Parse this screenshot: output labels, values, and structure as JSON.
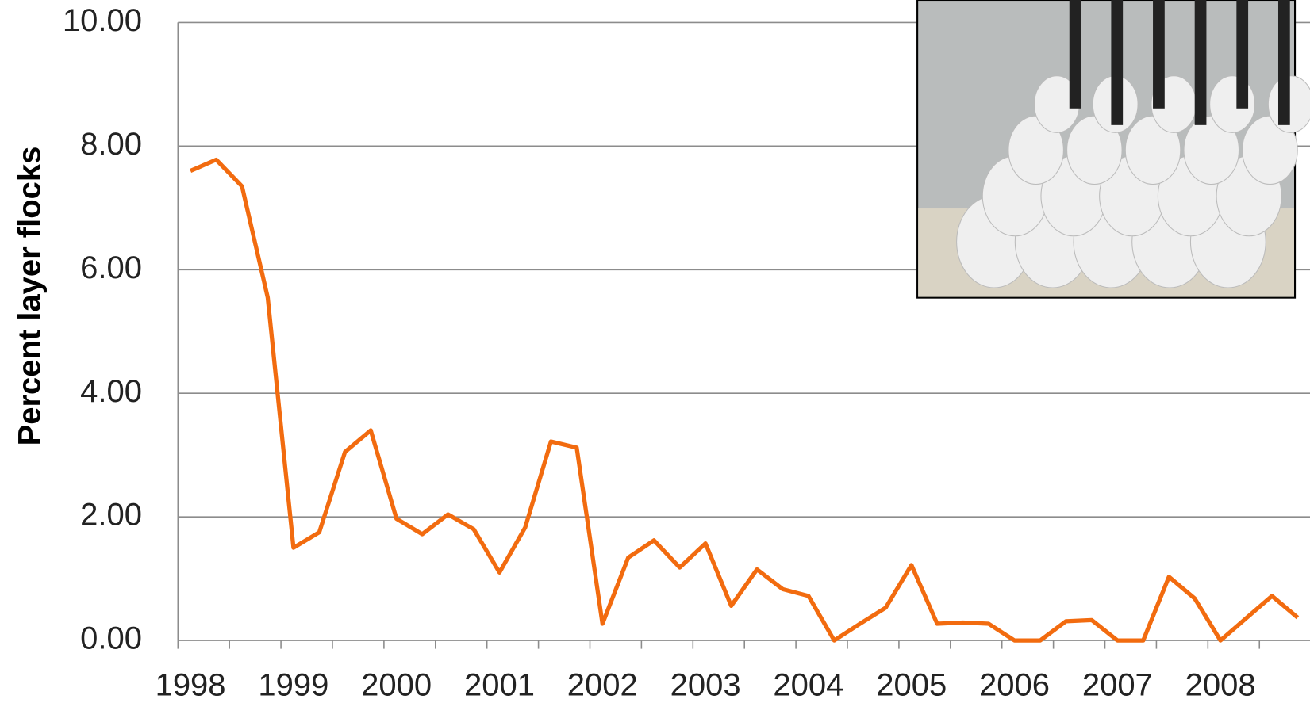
{
  "chart_data": {
    "type": "line",
    "y_label": "Percent layer flocks",
    "categories": [
      "1998",
      null,
      null,
      null,
      "1999",
      null,
      null,
      null,
      "2000",
      null,
      null,
      null,
      "2001",
      null,
      null,
      null,
      "2002",
      null,
      null,
      null,
      "2003",
      null,
      null,
      null,
      "2004",
      null,
      null,
      null,
      "2005",
      null,
      null,
      null,
      "2006",
      null,
      null,
      null,
      "2007",
      null,
      null,
      null,
      "2008",
      null,
      null,
      null
    ],
    "series": [
      {
        "color": "#f26b0f",
        "values": [
          7.6,
          7.78,
          7.35,
          5.55,
          1.5,
          1.75,
          3.05,
          3.4,
          1.97,
          1.72,
          2.04,
          1.8,
          1.1,
          1.83,
          3.22,
          3.12,
          0.27,
          1.34,
          1.62,
          1.18,
          1.57,
          0.56,
          1.15,
          0.83,
          0.72,
          0.0,
          0.27,
          0.53,
          1.22,
          0.27,
          0.29,
          0.27,
          0.0,
          0.0,
          0.31,
          0.33,
          0.0,
          0.0,
          1.03,
          0.68,
          0.0,
          0.36,
          0.72,
          0.37
        ]
      }
    ],
    "ylim": [
      0,
      10
    ],
    "yticks": [
      {
        "value": 0,
        "label": "0.00"
      },
      {
        "value": 2,
        "label": "2.00"
      },
      {
        "value": 4,
        "label": "4.00"
      },
      {
        "value": 6,
        "label": "6.00"
      },
      {
        "value": 8,
        "label": "8.00"
      },
      {
        "value": 10,
        "label": "10.00"
      }
    ],
    "grid": true
  }
}
